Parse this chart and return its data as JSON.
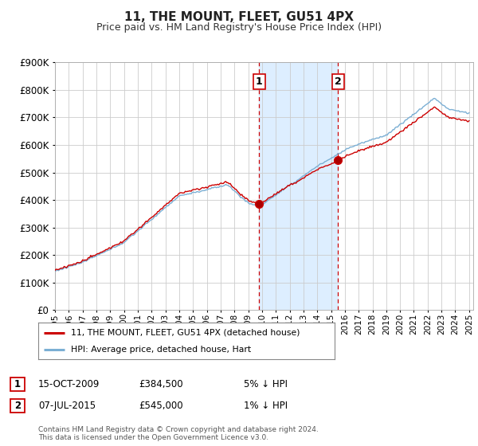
{
  "title": "11, THE MOUNT, FLEET, GU51 4PX",
  "subtitle": "Price paid vs. HM Land Registry's House Price Index (HPI)",
  "ylim": [
    0,
    900000
  ],
  "yticks": [
    0,
    100000,
    200000,
    300000,
    400000,
    500000,
    600000,
    700000,
    800000,
    900000
  ],
  "transaction1_date": "15-OCT-2009",
  "transaction1_price": 384500,
  "transaction1_hpi": "5% ↓ HPI",
  "transaction2_date": "07-JUL-2015",
  "transaction2_price": 545000,
  "transaction2_hpi": "1% ↓ HPI",
  "legend_line1": "11, THE MOUNT, FLEET, GU51 4PX (detached house)",
  "legend_line2": "HPI: Average price, detached house, Hart",
  "footer": "Contains HM Land Registry data © Crown copyright and database right 2024.\nThis data is licensed under the Open Government Licence v3.0.",
  "color_red": "#cc0000",
  "color_blue": "#7bafd4",
  "color_shaded": "#ddeeff",
  "bg_color": "#ffffff",
  "grid_color": "#cccccc",
  "t1_year": 2009.79,
  "t2_year": 2015.5,
  "start_year": 1995,
  "end_year": 2025
}
